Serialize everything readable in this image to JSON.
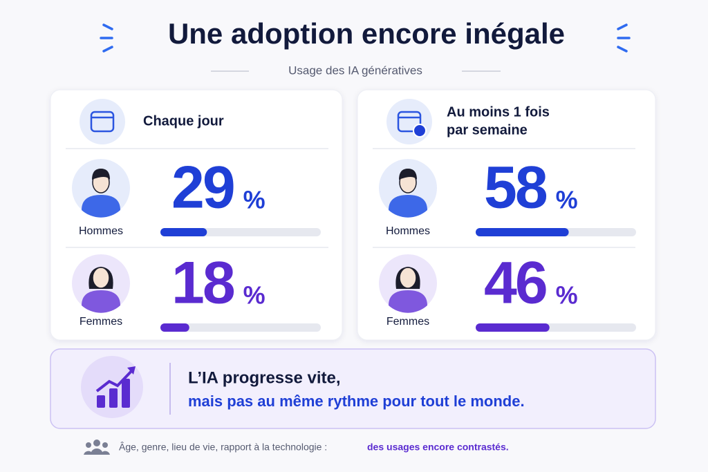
{
  "header": {
    "title": "Une adoption encore inégale",
    "subtitle": "Usage des IA génératives"
  },
  "scale": [
    0,
    100
  ],
  "cards": [
    {
      "title": [
        "Chaque jour"
      ],
      "rows": [
        {
          "name": "Hommes",
          "value": 29,
          "unit": "%",
          "color": "#1f3fd6"
        },
        {
          "name": "Femmes",
          "value": 18,
          "unit": "%",
          "color": "#5a2bd0"
        }
      ]
    },
    {
      "title": [
        "Au moins 1 fois",
        "par semaine"
      ],
      "rows": [
        {
          "name": "Hommes",
          "value": 58,
          "unit": "%",
          "color": "#1f3fd6"
        },
        {
          "name": "Femmes",
          "value": 46,
          "unit": "%",
          "color": "#5a2bd0"
        }
      ]
    }
  ],
  "banner": {
    "line1": "L’IA progresse vite,",
    "line2": "mais pas au même rythme pour tout le monde."
  },
  "footer": {
    "text": "Âge, genre, lieu de vie, rapport à la technologie :",
    "highlight": "des usages encore contrastés."
  }
}
